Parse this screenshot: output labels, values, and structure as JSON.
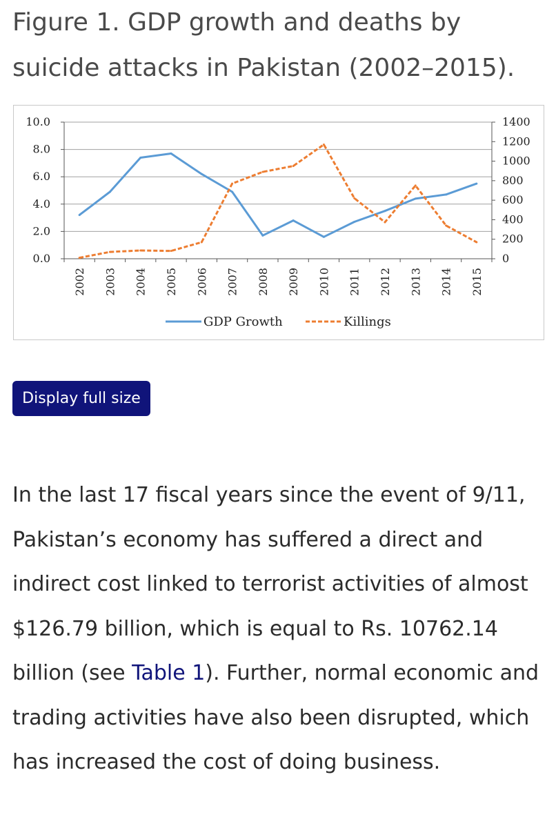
{
  "figure": {
    "caption": "Figure 1. GDP growth and deaths by suicide attacks in Pakistan (2002–2015)."
  },
  "display_full_size_label": "Display full size",
  "body": {
    "text_before_link": "In the last 17 fiscal years since the event of 9/11, Pakistan’s economy has suffered a direct and indirect cost linked to terrorist activities of almost $126.79 billion, which is equal to Rs. 10762.14 billion (see ",
    "link_text": "Table 1",
    "text_after_link": "). Further, normal economic and trading activities have also been disrupted, which has increased the cost of doing business."
  },
  "colors": {
    "gdp": "#5b9bd5",
    "killings": "#ed7d31",
    "grid": "#a0a0a0",
    "button": "#10147a"
  },
  "chart_data": {
    "type": "line",
    "title": "",
    "x": [
      "2002",
      "2003",
      "2004",
      "2005",
      "2006",
      "2007",
      "2008",
      "2009",
      "2010",
      "2011",
      "2012",
      "2013",
      "2014",
      "2015"
    ],
    "y_left": {
      "ticks": [
        "10.0",
        "8.0",
        "6.0",
        "4.0",
        "2.0",
        "0.0"
      ],
      "range": [
        0,
        10
      ]
    },
    "y_right": {
      "ticks": [
        "1400",
        "1200",
        "1000",
        "800",
        "600",
        "400",
        "200",
        "0"
      ],
      "range": [
        0,
        1400
      ]
    },
    "series": [
      {
        "name": "GDP Growth",
        "axis": "left",
        "style": "solid",
        "values": [
          3.2,
          4.9,
          7.4,
          7.7,
          6.2,
          4.9,
          1.7,
          2.8,
          1.6,
          2.7,
          3.5,
          4.4,
          4.7,
          5.5
        ]
      },
      {
        "name": "Killings",
        "axis": "right",
        "style": "dashed",
        "values": [
          10,
          70,
          85,
          80,
          170,
          770,
          890,
          950,
          1170,
          620,
          375,
          750,
          340,
          170
        ]
      }
    ],
    "grid": true,
    "legend": "bottom"
  }
}
